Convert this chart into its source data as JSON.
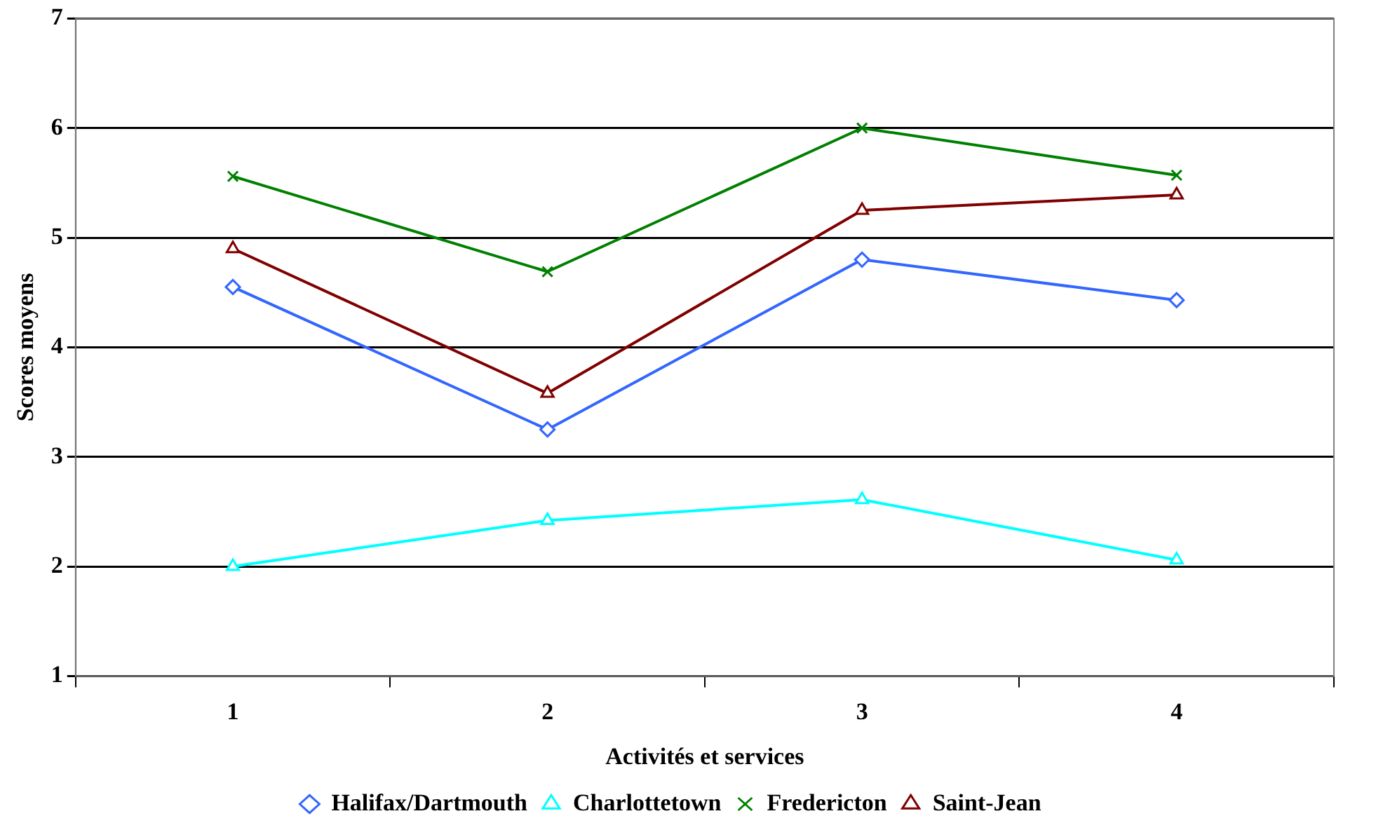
{
  "chart_data": {
    "type": "line",
    "xlabel": "Activités et services",
    "ylabel": "Scores moyens",
    "categories": [
      "1",
      "2",
      "3",
      "4"
    ],
    "series": [
      {
        "name": "Halifax/Dartmouth",
        "color": "#3366ff",
        "marker": "diamond",
        "values": [
          4.55,
          3.25,
          4.8,
          4.43
        ]
      },
      {
        "name": "Charlottetown",
        "color": "#00ffff",
        "marker": "triangle",
        "values": [
          2.0,
          2.42,
          2.61,
          2.06
        ]
      },
      {
        "name": "Fredericton",
        "color": "#008000",
        "marker": "cross",
        "values": [
          5.56,
          4.69,
          6.0,
          5.57
        ]
      },
      {
        "name": "Saint-Jean",
        "color": "#800000",
        "marker": "triangle",
        "values": [
          4.9,
          3.58,
          5.25,
          5.39
        ]
      }
    ],
    "ylim": [
      1,
      7
    ],
    "yticks": [
      1,
      2,
      3,
      4,
      5,
      6,
      7
    ],
    "grid": "y",
    "legend": "bottom",
    "line_style": "solid"
  }
}
